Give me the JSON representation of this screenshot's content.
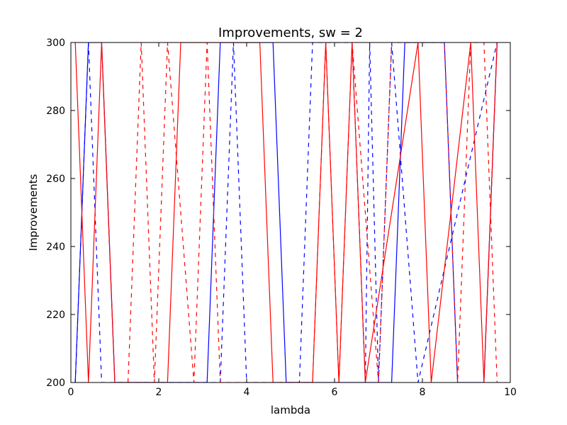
{
  "chart_data": {
    "type": "line",
    "title": "Improvements, sw = 2",
    "xlabel": "lambda",
    "ylabel": "Improvements",
    "xlim": [
      0,
      10
    ],
    "ylim": [
      200,
      300
    ],
    "xticks": [
      0,
      2,
      4,
      6,
      8,
      10
    ],
    "yticks": [
      200,
      220,
      240,
      260,
      280,
      300
    ],
    "grid": false,
    "legend": "none",
    "series": [
      {
        "color": "#0000ff",
        "style": "solid",
        "x": [
          0.1,
          0.4,
          0.7,
          1.0,
          3.1,
          3.4,
          4.6,
          4.9,
          7.3,
          7.6,
          8.5,
          8.8,
          9.4,
          9.7
        ],
        "y": [
          200,
          300,
          300,
          200,
          200,
          300,
          300,
          200,
          200,
          300,
          300,
          200,
          200,
          300
        ]
      },
      {
        "color": "#0000ff",
        "style": "dashed",
        "x": [
          0.1,
          0.4,
          0.7,
          3.4,
          3.7,
          4.0,
          5.2,
          5.5,
          6.4,
          6.7,
          6.8,
          7.0,
          7.3,
          7.9,
          9.7
        ],
        "y": [
          200,
          300,
          200,
          200,
          300,
          200,
          200,
          300,
          300,
          200,
          300,
          200,
          300,
          200,
          300
        ]
      },
      {
        "color": "#ff0000",
        "style": "solid",
        "x": [
          0.1,
          0.4,
          0.7,
          1.0,
          2.2,
          2.5,
          3.1,
          4.3,
          4.6,
          5.5,
          5.8,
          6.1,
          6.4,
          6.7,
          7.9,
          8.2,
          9.1,
          9.4,
          9.7
        ],
        "y": [
          300,
          200,
          300,
          200,
          200,
          300,
          300,
          300,
          200,
          200,
          300,
          200,
          300,
          200,
          300,
          200,
          300,
          200,
          300
        ]
      },
      {
        "color": "#ff0000",
        "style": "dashed",
        "x": [
          1.3,
          1.6,
          1.9,
          2.2,
          2.8,
          3.1,
          3.4,
          5.5,
          5.8,
          6.1,
          6.4,
          7.0,
          7.3,
          8.5,
          8.8,
          9.1,
          9.4,
          9.7
        ],
        "y": [
          200,
          300,
          200,
          300,
          200,
          300,
          200,
          200,
          300,
          200,
          300,
          200,
          300,
          300,
          200,
          300,
          300,
          200
        ]
      }
    ]
  }
}
